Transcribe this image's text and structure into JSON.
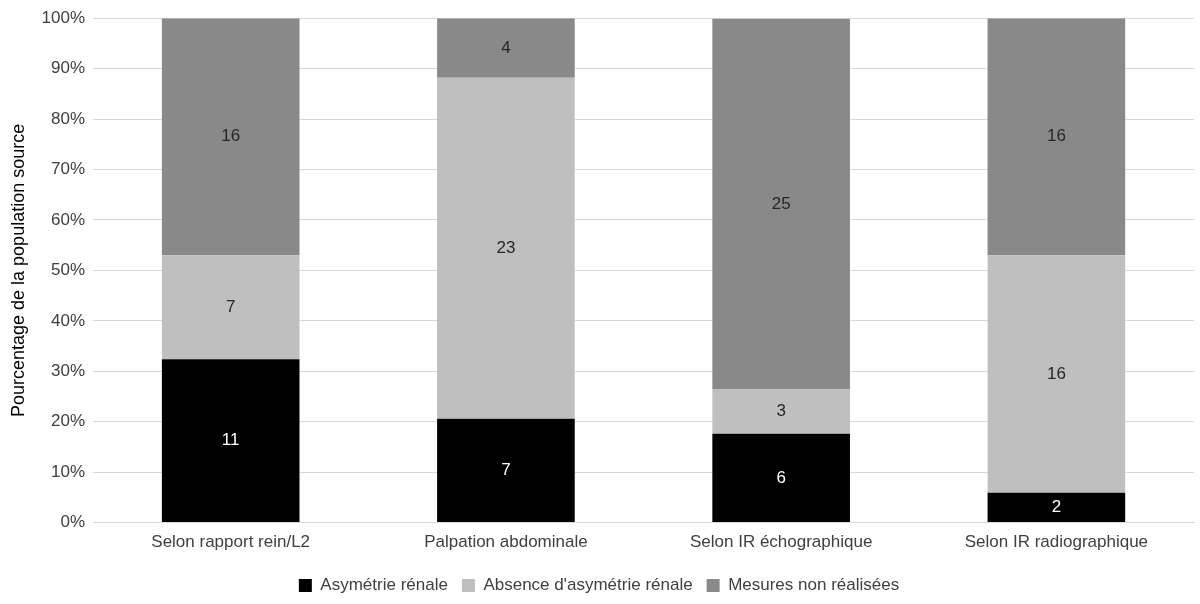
{
  "chart_data": {
    "type": "bar",
    "stacked": true,
    "ylabel": "Pourcentage de la population source",
    "categories": [
      "Selon rapport rein/L2",
      "Palpation abdominale",
      "Selon IR échographique",
      "Selon IR radiographique"
    ],
    "series": [
      {
        "name": "Asymétrie rénale",
        "color": "#000000",
        "values": [
          32.4,
          20.6,
          17.6,
          5.9
        ]
      },
      {
        "name": "Absence d'asymétrie rénale",
        "color": "#bfbfbf",
        "values": [
          20.6,
          67.6,
          8.8,
          47.1
        ]
      },
      {
        "name": "Mesures non réalisées",
        "color": "#898989",
        "values": [
          47.0,
          11.8,
          73.5,
          47.0
        ]
      }
    ],
    "annotations": [
      "11",
      "7",
      "6",
      "2",
      "7",
      "23",
      "3",
      "16",
      "16",
      "4",
      "25",
      "16"
    ],
    "ylim": [
      0,
      100
    ],
    "yticks": [
      {
        "value": 0,
        "label": "0%"
      },
      {
        "value": 10,
        "label": "10%"
      },
      {
        "value": 20,
        "label": "20%"
      },
      {
        "value": 30,
        "label": "30%"
      },
      {
        "value": 40,
        "label": "40%"
      },
      {
        "value": 50,
        "label": "50%"
      },
      {
        "value": 60,
        "label": "60%"
      },
      {
        "value": 70,
        "label": "70%"
      },
      {
        "value": 80,
        "label": "80%"
      },
      {
        "value": 90,
        "label": "90%"
      },
      {
        "value": 100,
        "label": "100%"
      }
    ],
    "grid": "y",
    "legend": "bottom"
  }
}
